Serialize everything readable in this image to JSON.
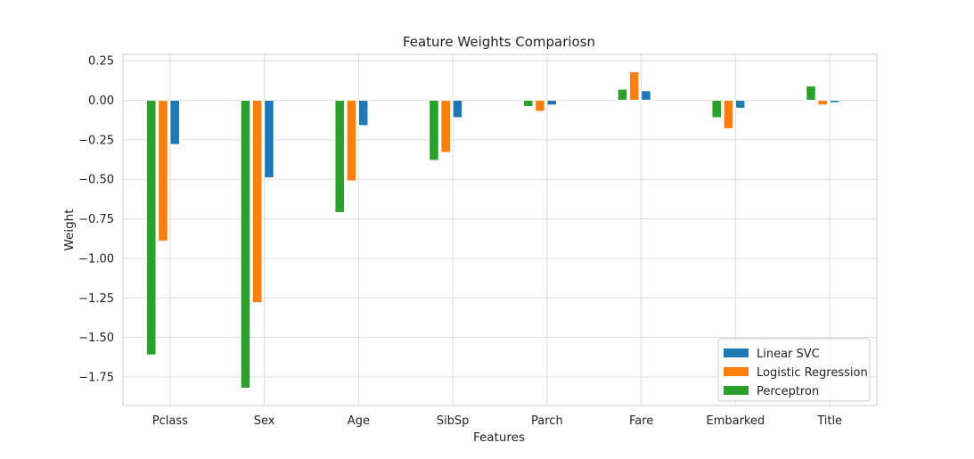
{
  "chart_data": {
    "type": "bar",
    "title": "Feature Weights Compariosn",
    "xlabel": "Features",
    "ylabel": "Weight",
    "categories": [
      "Pclass",
      "Sex",
      "Age",
      "SibSp",
      "Parch",
      "Fare",
      "Embarked",
      "Title"
    ],
    "ylim": [
      -1.93,
      0.29
    ],
    "yticks": [
      0.25,
      0.0,
      -0.25,
      -0.5,
      -0.75,
      -1.0,
      -1.25,
      -1.5,
      -1.75
    ],
    "ytick_labels": [
      "0.25",
      "0.00",
      "−0.25",
      "−0.50",
      "−0.75",
      "−1.00",
      "−1.25",
      "−1.50",
      "−1.75"
    ],
    "grid": true,
    "legend_position": "lower-right",
    "series": [
      {
        "name": "Perceptron",
        "color": "#2ca02c",
        "values": [
          -1.61,
          -1.82,
          -0.71,
          -0.38,
          -0.04,
          0.07,
          -0.11,
          0.09
        ]
      },
      {
        "name": "Logistic Regression",
        "color": "#ff7f0e",
        "values": [
          -0.89,
          -1.28,
          -0.51,
          -0.33,
          -0.07,
          0.18,
          -0.18,
          -0.03
        ]
      },
      {
        "name": "Linear SVC",
        "color": "#1f77b4",
        "values": [
          -0.28,
          -0.49,
          -0.16,
          -0.11,
          -0.03,
          0.06,
          -0.05,
          -0.015
        ]
      }
    ],
    "legend_order": [
      "Linear SVC",
      "Logistic Regression",
      "Perceptron"
    ]
  }
}
